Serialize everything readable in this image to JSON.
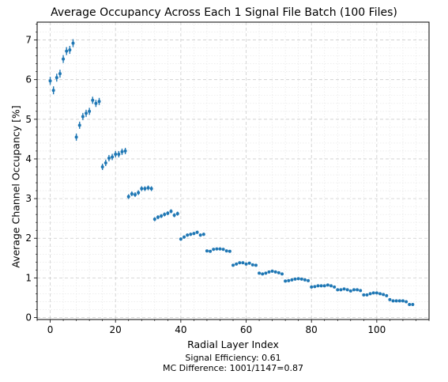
{
  "chart_data": {
    "type": "scatter",
    "title": "Average Occupancy Across Each 1 Signal File Batch (100 Files)",
    "xlabel": "Radial Layer Index",
    "ylabel": "Average Channel Occupancy [%]",
    "xlim": [
      -4,
      116
    ],
    "ylim": [
      -0.05,
      7.45
    ],
    "xticks": [
      0,
      20,
      40,
      60,
      80,
      100
    ],
    "yticks": [
      0,
      1,
      2,
      3,
      4,
      5,
      6,
      7
    ],
    "grid": true,
    "color": "#1f77b4",
    "annotations": [
      "Signal Efficiency: 0.61",
      "MC Difference: 1001/1147=0.87"
    ],
    "series": [
      {
        "x": [
          0,
          1,
          2,
          3,
          4,
          5,
          6,
          7,
          8,
          9,
          10,
          11,
          12,
          13,
          14,
          15,
          16,
          17,
          18,
          19,
          20,
          21,
          22,
          23,
          24,
          25,
          26,
          27,
          28,
          29,
          30,
          31,
          32,
          33,
          34,
          35,
          36,
          37,
          38,
          39,
          40,
          41,
          42,
          43,
          44,
          45,
          46,
          47,
          48,
          49,
          50,
          51,
          52,
          53,
          54,
          55,
          56,
          57,
          58,
          59,
          60,
          61,
          62,
          63,
          64,
          65,
          66,
          67,
          68,
          69,
          70,
          71,
          72,
          73,
          74,
          75,
          76,
          77,
          78,
          79,
          80,
          81,
          82,
          83,
          84,
          85,
          86,
          87,
          88,
          89,
          90,
          91,
          92,
          93,
          94,
          95,
          96,
          97,
          98,
          99,
          100,
          101,
          102,
          103,
          104,
          105,
          106,
          107,
          108,
          109,
          110,
          111
        ],
        "y": [
          5.97,
          5.73,
          6.05,
          6.15,
          6.52,
          6.72,
          6.75,
          6.92,
          4.55,
          4.85,
          5.07,
          5.15,
          5.2,
          5.48,
          5.4,
          5.45,
          3.8,
          3.9,
          4.02,
          4.05,
          4.12,
          4.12,
          4.18,
          4.2,
          3.05,
          3.12,
          3.1,
          3.15,
          3.25,
          3.25,
          3.27,
          3.25,
          2.48,
          2.53,
          2.56,
          2.6,
          2.63,
          2.68,
          2.58,
          2.62,
          1.98,
          2.03,
          2.08,
          2.1,
          2.12,
          2.15,
          2.08,
          2.1,
          1.68,
          1.67,
          1.72,
          1.73,
          1.73,
          1.72,
          1.68,
          1.67,
          1.32,
          1.35,
          1.38,
          1.38,
          1.35,
          1.37,
          1.33,
          1.32,
          1.12,
          1.1,
          1.12,
          1.15,
          1.17,
          1.15,
          1.13,
          1.1,
          0.92,
          0.93,
          0.95,
          0.97,
          0.98,
          0.97,
          0.95,
          0.93,
          0.77,
          0.78,
          0.8,
          0.8,
          0.8,
          0.82,
          0.8,
          0.77,
          0.7,
          0.7,
          0.72,
          0.7,
          0.67,
          0.7,
          0.7,
          0.68,
          0.57,
          0.57,
          0.6,
          0.62,
          0.62,
          0.6,
          0.58,
          0.55,
          0.45,
          0.42,
          0.42,
          0.42,
          0.42,
          0.4,
          0.33,
          0.33
        ],
        "yerr": [
          0.1,
          0.1,
          0.1,
          0.1,
          0.1,
          0.1,
          0.1,
          0.1,
          0.09,
          0.09,
          0.09,
          0.09,
          0.09,
          0.09,
          0.09,
          0.09,
          0.08,
          0.08,
          0.08,
          0.08,
          0.08,
          0.08,
          0.08,
          0.08,
          0.06,
          0.06,
          0.06,
          0.06,
          0.06,
          0.06,
          0.06,
          0.06,
          0.05,
          0.05,
          0.05,
          0.05,
          0.05,
          0.05,
          0.05,
          0.05,
          0.04,
          0.04,
          0.04,
          0.04,
          0.04,
          0.04,
          0.04,
          0.04,
          0.03,
          0.03,
          0.03,
          0.03,
          0.03,
          0.03,
          0.03,
          0.03,
          0.03,
          0.03,
          0.03,
          0.03,
          0.03,
          0.03,
          0.03,
          0.03,
          0.02,
          0.02,
          0.02,
          0.02,
          0.02,
          0.02,
          0.02,
          0.02,
          0.02,
          0.02,
          0.02,
          0.02,
          0.02,
          0.02,
          0.02,
          0.02,
          0.02,
          0.02,
          0.02,
          0.02,
          0.02,
          0.02,
          0.02,
          0.02,
          0.02,
          0.02,
          0.02,
          0.02,
          0.02,
          0.02,
          0.02,
          0.02,
          0.02,
          0.02,
          0.02,
          0.02,
          0.02,
          0.02,
          0.02,
          0.02,
          0.02,
          0.02,
          0.02,
          0.02,
          0.02,
          0.02,
          0.02,
          0.02
        ]
      }
    ]
  }
}
